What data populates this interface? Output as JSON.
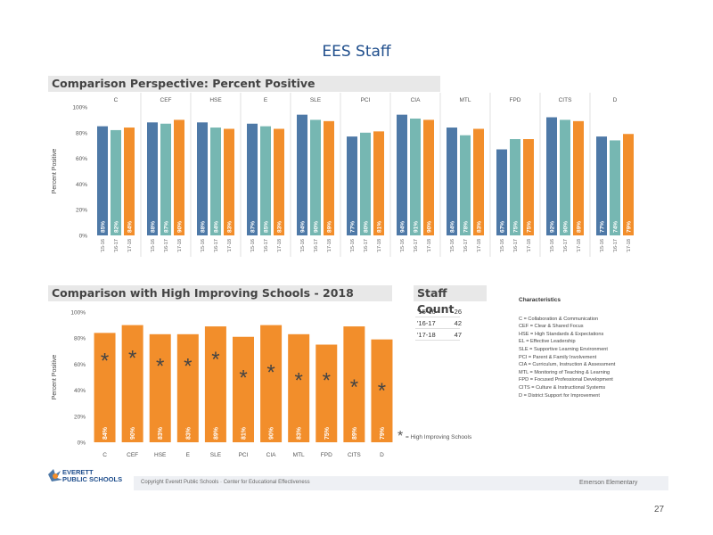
{
  "page": {
    "title": "EES Staff",
    "page_number": "27"
  },
  "colors": {
    "blue": "#4e79a7",
    "teal": "#76b7b2",
    "orange": "#f28e2b",
    "title_blue": "#1f4e8c"
  },
  "chart_data": [
    {
      "type": "bar",
      "title": "Comparison Perspective: Percent Positive",
      "ylabel": "Percent Positive",
      "ylim": [
        0,
        100
      ],
      "yticks": [
        "0%",
        "20%",
        "40%",
        "60%",
        "80%",
        "100%"
      ],
      "grid": false,
      "groups": [
        {
          "name": "C",
          "bars": [
            {
              "x": "'15-16",
              "value": 85
            },
            {
              "x": "'16-17",
              "value": 82
            },
            {
              "x": "'17-18",
              "value": 84
            }
          ]
        },
        {
          "name": "CEF",
          "bars": [
            {
              "x": "'15-16",
              "value": 88
            },
            {
              "x": "'16-17",
              "value": 87
            },
            {
              "x": "'17-18",
              "value": 90
            }
          ]
        },
        {
          "name": "HSE",
          "bars": [
            {
              "x": "'15-16",
              "value": 88
            },
            {
              "x": "'16-17",
              "value": 84
            },
            {
              "x": "'17-18",
              "value": 83
            }
          ]
        },
        {
          "name": "E",
          "bars": [
            {
              "x": "'15-16",
              "value": 87
            },
            {
              "x": "'16-17",
              "value": 85
            },
            {
              "x": "'17-18",
              "value": 83
            }
          ]
        },
        {
          "name": "SLE",
          "bars": [
            {
              "x": "'15-16",
              "value": 94
            },
            {
              "x": "'16-17",
              "value": 90
            },
            {
              "x": "'17-18",
              "value": 89
            }
          ]
        },
        {
          "name": "PCI",
          "bars": [
            {
              "x": "'15-16",
              "value": 77
            },
            {
              "x": "'16-17",
              "value": 80
            },
            {
              "x": "'17-18",
              "value": 81
            }
          ]
        },
        {
          "name": "CIA",
          "bars": [
            {
              "x": "'15-16",
              "value": 94
            },
            {
              "x": "'16-17",
              "value": 91
            },
            {
              "x": "'17-18",
              "value": 90
            }
          ]
        },
        {
          "name": "MTL",
          "bars": [
            {
              "x": "'15-16",
              "value": 84
            },
            {
              "x": "'16-17",
              "value": 78
            },
            {
              "x": "'17-18",
              "value": 83
            }
          ]
        },
        {
          "name": "FPD",
          "bars": [
            {
              "x": "'15-16",
              "value": 67
            },
            {
              "x": "'16-17",
              "value": 75
            },
            {
              "x": "'17-18",
              "value": 75
            }
          ]
        },
        {
          "name": "CITS",
          "bars": [
            {
              "x": "'15-16",
              "value": 92
            },
            {
              "x": "'16-17",
              "value": 90
            },
            {
              "x": "'17-18",
              "value": 89
            }
          ]
        },
        {
          "name": "D",
          "bars": [
            {
              "x": "'15-16",
              "value": 77
            },
            {
              "x": "'16-17",
              "value": 74
            },
            {
              "x": "'17-18",
              "value": 79
            }
          ]
        }
      ],
      "value_labels": [
        "85%",
        "82%",
        "84%",
        "88%",
        "87%",
        "90%",
        "88%",
        "84%",
        "83%",
        "87%",
        "85%",
        "83%",
        "94%",
        "90%",
        "89%",
        "77%",
        "80%",
        "81%",
        "94%",
        "91%",
        "90%",
        "84%",
        "78%",
        "83%",
        "67%",
        "75%",
        "75%",
        "92%",
        "90%",
        "89%",
        "77%",
        "74%",
        "79%"
      ]
    },
    {
      "type": "bar",
      "title": "Comparison with High Improving Schools - 2018",
      "ylabel": "Percent Positive",
      "ylim": [
        0,
        100
      ],
      "yticks": [
        "0%",
        "20%",
        "40%",
        "60%",
        "80%",
        "100%"
      ],
      "categories": [
        "C",
        "CEF",
        "HSE",
        "E",
        "SLE",
        "PCI",
        "CIA",
        "MTL",
        "FPD",
        "CITS",
        "D"
      ],
      "values": [
        84,
        90,
        83,
        83,
        89,
        81,
        90,
        83,
        75,
        89,
        79
      ],
      "value_labels": [
        "84%",
        "90%",
        "83%",
        "83%",
        "89%",
        "81%",
        "90%",
        "83%",
        "75%",
        "89%",
        "79%"
      ],
      "markers": [
        64,
        66,
        60,
        60,
        65,
        51,
        55,
        49,
        49,
        44,
        41
      ],
      "marker_symbol": "*",
      "legend": "= High Improving Schools"
    }
  ],
  "staff_count": {
    "title": "Staff Count",
    "rows": [
      {
        "label": "'15-16",
        "value": "26"
      },
      {
        "label": "'16-17",
        "value": "42"
      },
      {
        "label": "'17-18",
        "value": "47"
      }
    ]
  },
  "characteristics": {
    "title": "Characteristics",
    "items": [
      "C = Collaboration & Communication",
      "CEF = Clear & Shared Focus",
      "HSE = High Standards & Expectations",
      "EL = Effective Leadership",
      "SLE = Supportive Learning Environment",
      "PCI = Parent & Family Involvement",
      "CIA = Curriculum, Instruction & Assessment",
      "MTL = Monitoring of Teaching & Learning",
      "FPD = Focused Professional Development",
      "CITS = Culture & Instructional Systems",
      "D = District Support for Improvement"
    ]
  },
  "footer": {
    "logo_line1": "EVERETT",
    "logo_line2": "PUBLIC SCHOOLS",
    "center_text": "Copyright Everett Public Schools · Center for Educational Effectiveness",
    "right_text": "Emerson Elementary"
  }
}
